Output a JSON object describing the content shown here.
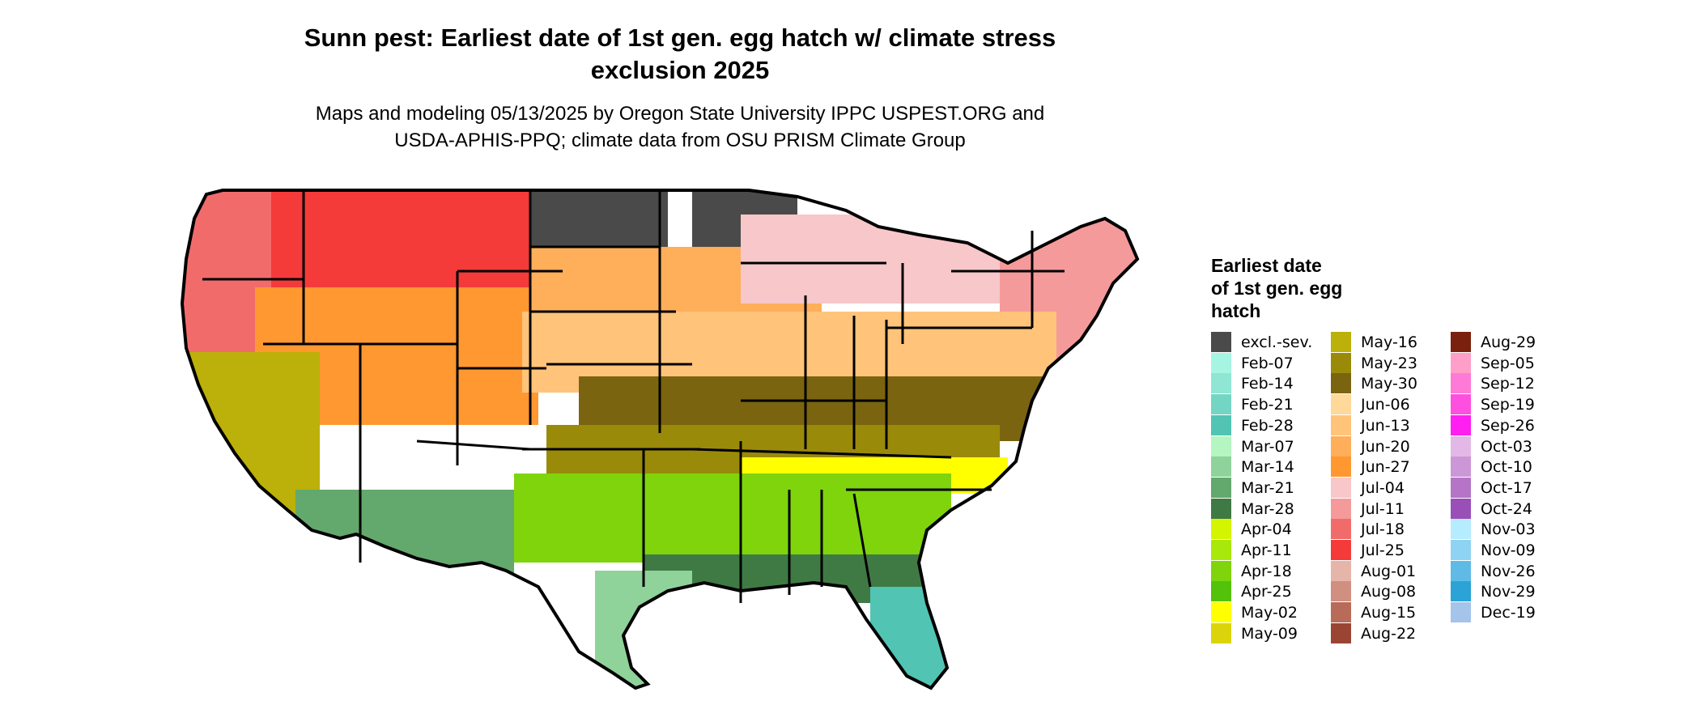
{
  "title_line1": "Sunn pest: Earliest date of 1st gen. egg hatch w/ climate stress",
  "title_line2": "exclusion 2025",
  "subtitle_line1": "Maps and modeling 05/13/2025 by Oregon State University IPPC USPEST.ORG and",
  "subtitle_line2": "USDA-APHIS-PPQ; climate data from OSU PRISM Climate Group",
  "legend": {
    "title_line1": "Earliest date",
    "title_line2": "of 1st gen. egg",
    "title_line3": "hatch",
    "items": [
      {
        "label": "excl.-sev.",
        "color": "#4a4a4a"
      },
      {
        "label": "Feb-07",
        "color": "#a6f5e3"
      },
      {
        "label": "Feb-14",
        "color": "#8ee6d3"
      },
      {
        "label": "Feb-21",
        "color": "#73d6c4"
      },
      {
        "label": "Feb-28",
        "color": "#52c4b4"
      },
      {
        "label": "Mar-07",
        "color": "#b5f5c2"
      },
      {
        "label": "Mar-14",
        "color": "#8fd39a"
      },
      {
        "label": "Mar-21",
        "color": "#63a86c"
      },
      {
        "label": "Mar-28",
        "color": "#3f7a45"
      },
      {
        "label": "Apr-04",
        "color": "#d4f500"
      },
      {
        "label": "Apr-11",
        "color": "#a8e80a"
      },
      {
        "label": "Apr-18",
        "color": "#7fd40c"
      },
      {
        "label": "Apr-25",
        "color": "#52c20a"
      },
      {
        "label": "May-02",
        "color": "#ffff00"
      },
      {
        "label": "May-09",
        "color": "#dcd40a"
      },
      {
        "label": "May-16",
        "color": "#bcb00a"
      },
      {
        "label": "May-23",
        "color": "#9a8a0a"
      },
      {
        "label": "May-30",
        "color": "#7a6410"
      },
      {
        "label": "Jun-06",
        "color": "#ffd89a"
      },
      {
        "label": "Jun-13",
        "color": "#ffc47a"
      },
      {
        "label": "Jun-20",
        "color": "#ffae5a"
      },
      {
        "label": "Jun-27",
        "color": "#ff9830"
      },
      {
        "label": "Jul-04",
        "color": "#f7c7c9"
      },
      {
        "label": "Jul-11",
        "color": "#f59a9a"
      },
      {
        "label": "Jul-18",
        "color": "#f26b6b"
      },
      {
        "label": "Jul-25",
        "color": "#f53a3a"
      },
      {
        "label": "Aug-01",
        "color": "#e6b5aa"
      },
      {
        "label": "Aug-08",
        "color": "#d08f80"
      },
      {
        "label": "Aug-15",
        "color": "#b86b58"
      },
      {
        "label": "Aug-22",
        "color": "#9a4534"
      },
      {
        "label": "Aug-29",
        "color": "#7a200e"
      },
      {
        "label": "Sep-05",
        "color": "#ff9ec8"
      },
      {
        "label": "Sep-12",
        "color": "#ff7ad6"
      },
      {
        "label": "Sep-19",
        "color": "#ff4fe0"
      },
      {
        "label": "Sep-26",
        "color": "#ff1ff0"
      },
      {
        "label": "Oct-03",
        "color": "#e3b8e6"
      },
      {
        "label": "Oct-10",
        "color": "#cc97d6"
      },
      {
        "label": "Oct-17",
        "color": "#b574c6"
      },
      {
        "label": "Oct-24",
        "color": "#9a4fb8"
      },
      {
        "label": "Nov-03",
        "color": "#b6ecff"
      },
      {
        "label": "Nov-09",
        "color": "#8fd3f2"
      },
      {
        "label": "Nov-26",
        "color": "#5fbbe6"
      },
      {
        "label": "Nov-29",
        "color": "#2ba3d6"
      },
      {
        "label": "Dec-19",
        "color": "#a5c4ea"
      }
    ]
  },
  "map_regions": [
    {
      "name": "pacific-northwest",
      "color": "#f26b6b"
    },
    {
      "name": "northern-rockies",
      "color": "#f53a3a"
    },
    {
      "name": "north-dakota-northeast",
      "color": "#4a4a4a"
    },
    {
      "name": "northern-minnesota",
      "color": "#4a4a4a"
    },
    {
      "name": "great-plains-north",
      "color": "#ffae5a"
    },
    {
      "name": "upper-midwest",
      "color": "#f7c7c9"
    },
    {
      "name": "central-plains",
      "color": "#ffc47a"
    },
    {
      "name": "ohio-valley",
      "color": "#7a6410"
    },
    {
      "name": "mid-south",
      "color": "#9a8a0a"
    },
    {
      "name": "carolinas-band",
      "color": "#ffff00"
    },
    {
      "name": "gulf-states",
      "color": "#7fd40c"
    },
    {
      "name": "gulf-coast",
      "color": "#3f7a45"
    },
    {
      "name": "south-texas",
      "color": "#8fd39a"
    },
    {
      "name": "florida-peninsula",
      "color": "#52c4b4"
    },
    {
      "name": "california-valley",
      "color": "#bcb00a"
    },
    {
      "name": "desert-southwest",
      "color": "#63a86c"
    },
    {
      "name": "northeast",
      "color": "#f59a9a"
    },
    {
      "name": "great-basin",
      "color": "#ff9830"
    }
  ]
}
